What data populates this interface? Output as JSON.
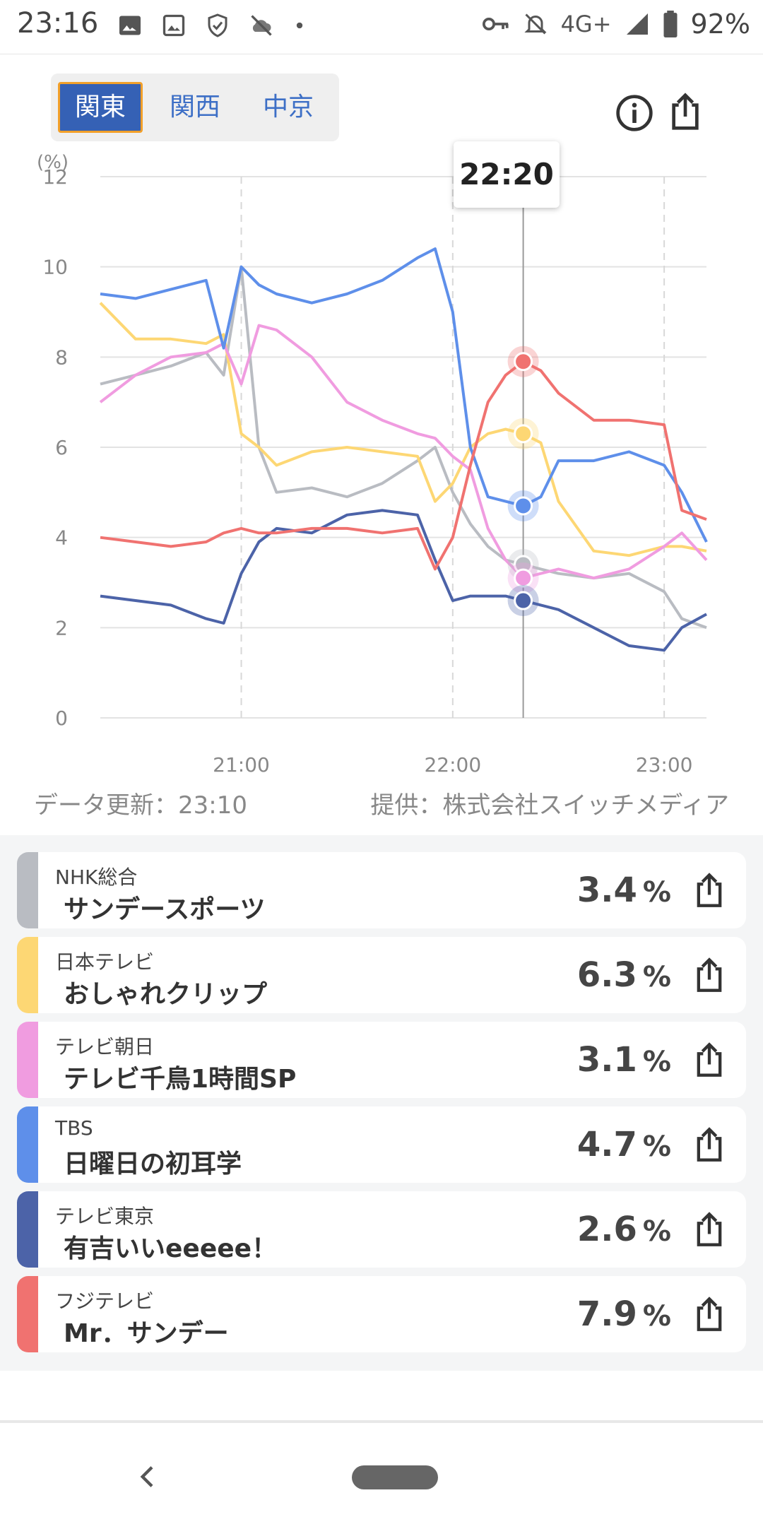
{
  "status_bar": {
    "time": "23:16",
    "left_icons": [
      "image-icon",
      "gallery-icon",
      "shield-icon",
      "cloud-off-icon",
      "dot-icon"
    ],
    "right_icons": [
      "vpn-key-icon",
      "bell-off-icon",
      "signal-icon",
      "battery-icon"
    ],
    "network": "4G+",
    "battery": "92%"
  },
  "regions": {
    "tabs": [
      {
        "label": "関東",
        "active": true
      },
      {
        "label": "関西",
        "active": false
      },
      {
        "label": "中京",
        "active": false
      }
    ]
  },
  "toolbar": {
    "info_icon": "info-icon",
    "share_icon": "share-icon"
  },
  "chart": {
    "tooltip_time": "22:20",
    "updated": "データ更新：23:10",
    "provider": "提供：株式会社スイッチメディア"
  },
  "chart_data": {
    "type": "line",
    "ylabel": "(%)",
    "ylim": [
      0,
      12
    ],
    "yticks": [
      "0",
      "2",
      "4",
      "6",
      "8",
      "10",
      "12"
    ],
    "xticks": [
      "21:00",
      "22:00",
      "23:00"
    ],
    "x_range": [
      "20:20",
      "23:12"
    ],
    "grid": true,
    "cursor_time": "22:20",
    "x": [
      "20:20",
      "20:30",
      "20:40",
      "20:50",
      "20:55",
      "21:00",
      "21:05",
      "21:10",
      "21:20",
      "21:30",
      "21:40",
      "21:50",
      "21:55",
      "22:00",
      "22:05",
      "22:10",
      "22:15",
      "22:20",
      "22:25",
      "22:30",
      "22:40",
      "22:50",
      "23:00",
      "23:05",
      "23:12"
    ],
    "series": [
      {
        "name": "NHK総合",
        "color": "#b9bcc2",
        "values": [
          7.4,
          7.6,
          7.8,
          8.1,
          7.6,
          10.0,
          6.0,
          5.0,
          5.1,
          4.9,
          5.2,
          5.7,
          6.0,
          5.0,
          4.3,
          3.8,
          3.5,
          3.4,
          3.3,
          3.2,
          3.1,
          3.2,
          2.8,
          2.2,
          2.0
        ]
      },
      {
        "name": "日本テレビ",
        "color": "#fdd774",
        "values": [
          9.2,
          8.4,
          8.4,
          8.3,
          8.5,
          6.3,
          6.0,
          5.6,
          5.9,
          6.0,
          5.9,
          5.8,
          4.8,
          5.2,
          6.0,
          6.3,
          6.4,
          6.3,
          6.1,
          4.8,
          3.7,
          3.6,
          3.8,
          3.8,
          3.7
        ]
      },
      {
        "name": "テレビ朝日",
        "color": "#f09ce0",
        "values": [
          7.0,
          7.6,
          8.0,
          8.1,
          8.3,
          7.4,
          8.7,
          8.6,
          8.0,
          7.0,
          6.6,
          6.3,
          6.2,
          5.8,
          5.5,
          4.2,
          3.5,
          3.1,
          3.2,
          3.3,
          3.1,
          3.3,
          3.8,
          4.1,
          3.5
        ]
      },
      {
        "name": "TBS",
        "color": "#5e8fea",
        "values": [
          9.4,
          9.3,
          9.5,
          9.7,
          8.2,
          10.0,
          9.6,
          9.4,
          9.2,
          9.4,
          9.7,
          10.2,
          10.4,
          9.0,
          6.0,
          4.9,
          4.8,
          4.7,
          4.9,
          5.7,
          5.7,
          5.9,
          5.6,
          5.0,
          3.9
        ]
      },
      {
        "name": "テレビ東京",
        "color": "#4c63a8",
        "values": [
          2.7,
          2.6,
          2.5,
          2.2,
          2.1,
          3.2,
          3.9,
          4.2,
          4.1,
          4.5,
          4.6,
          4.5,
          3.5,
          2.6,
          2.7,
          2.7,
          2.7,
          2.6,
          2.5,
          2.4,
          2.0,
          1.6,
          1.5,
          2.0,
          2.3
        ]
      },
      {
        "name": "フジテレビ",
        "color": "#f07270",
        "values": [
          4.0,
          3.9,
          3.8,
          3.9,
          4.1,
          4.2,
          4.1,
          4.1,
          4.2,
          4.2,
          4.1,
          4.2,
          3.3,
          4.0,
          5.6,
          7.0,
          7.6,
          7.9,
          7.7,
          7.2,
          6.6,
          6.6,
          6.5,
          4.6,
          4.4
        ]
      }
    ]
  },
  "programs": [
    {
      "channel": "NHK総合",
      "program": "サンデースポーツ",
      "value": "3.4",
      "unit": "%",
      "color": "#b9bcc2"
    },
    {
      "channel": "日本テレビ",
      "program": "おしゃれクリップ",
      "value": "6.3",
      "unit": "%",
      "color": "#fdd774"
    },
    {
      "channel": "テレビ朝日",
      "program": "テレビ千鳥1時間SP",
      "value": "3.1",
      "unit": "%",
      "color": "#f09ce0"
    },
    {
      "channel": "TBS",
      "program": "日曜日の初耳学",
      "value": "4.7",
      "unit": "%",
      "color": "#5e8fea"
    },
    {
      "channel": "テレビ東京",
      "program": "有吉いいeeeee！",
      "value": "2.6",
      "unit": "%",
      "color": "#4c63a8"
    },
    {
      "channel": "フジテレビ",
      "program": "Mr．サンデー",
      "value": "7.9",
      "unit": "%",
      "color": "#f07270"
    }
  ],
  "nav": {
    "back_icon": "back-icon",
    "home_icon": "home-pill-icon"
  }
}
